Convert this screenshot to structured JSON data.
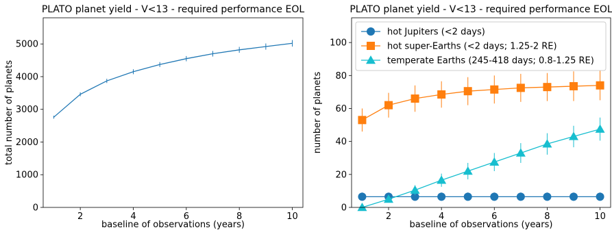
{
  "chart_data": [
    {
      "type": "line",
      "title": "PLATO planet yield - V<13 - required performance EOL",
      "xlabel": "baseline of observations (years)",
      "ylabel": "total number of planets",
      "xlim": [
        0.6,
        10.4
      ],
      "ylim": [
        0,
        5800
      ],
      "xticks": [
        2,
        4,
        6,
        8,
        10
      ],
      "yticks": [
        0,
        1000,
        2000,
        3000,
        4000,
        5000
      ],
      "grid": false,
      "series": [
        {
          "color": "#1f77b4",
          "marker": "none",
          "x": [
            1,
            2,
            3,
            4,
            5,
            6,
            7,
            8,
            9,
            10
          ],
          "y": [
            2760,
            3460,
            3870,
            4150,
            4370,
            4550,
            4700,
            4820,
            4920,
            5020
          ],
          "err": [
            45,
            60,
            65,
            75,
            75,
            80,
            85,
            90,
            95,
            100
          ]
        }
      ]
    },
    {
      "type": "line",
      "title": "PLATO planet yield - V<13 - required performance EOL",
      "xlabel": "baseline of observations (years)",
      "ylabel": "number of planets",
      "xlim": [
        0.6,
        10.4
      ],
      "ylim": [
        0,
        115
      ],
      "xticks": [
        2,
        4,
        6,
        8,
        10
      ],
      "yticks": [
        0,
        20,
        40,
        60,
        80,
        100
      ],
      "grid": false,
      "legend": "top-left",
      "series": [
        {
          "name": "hot Jupiters (<2 days)",
          "color": "#1f77b4",
          "marker": "circle",
          "x": [
            1,
            2,
            3,
            4,
            5,
            6,
            7,
            8,
            9,
            10
          ],
          "y": [
            6.5,
            6.5,
            6.5,
            6.5,
            6.5,
            6.5,
            6.5,
            6.5,
            6.5,
            6.5
          ],
          "err": [
            2.5,
            2.5,
            2.5,
            2.5,
            2.5,
            2.5,
            2.5,
            2.5,
            2.5,
            2.5
          ]
        },
        {
          "name": "hot super-Earths (<2 days; 1.25-2 RE)",
          "color": "#ff7f0e",
          "marker": "square",
          "x": [
            1,
            2,
            3,
            4,
            5,
            6,
            7,
            8,
            9,
            10
          ],
          "y": [
            53,
            62,
            66,
            68.5,
            70.5,
            71.5,
            72.5,
            73,
            73.5,
            74
          ],
          "err": [
            7,
            7.5,
            8,
            8,
            8.5,
            8.5,
            8.5,
            8.5,
            9,
            9
          ]
        },
        {
          "name": "temperate Earths (245-418 days; 0.8-1.25 RE)",
          "color": "#17becf",
          "marker": "triangle",
          "x": [
            1,
            2,
            3,
            4,
            5,
            6,
            7,
            8,
            9,
            10
          ],
          "y": [
            0,
            5,
            10.5,
            16.5,
            22,
            27.5,
            33,
            38.5,
            43,
            47.5
          ],
          "err": [
            0.5,
            2,
            3,
            4,
            5,
            5.5,
            6,
            6.5,
            6.5,
            7
          ]
        }
      ]
    }
  ]
}
